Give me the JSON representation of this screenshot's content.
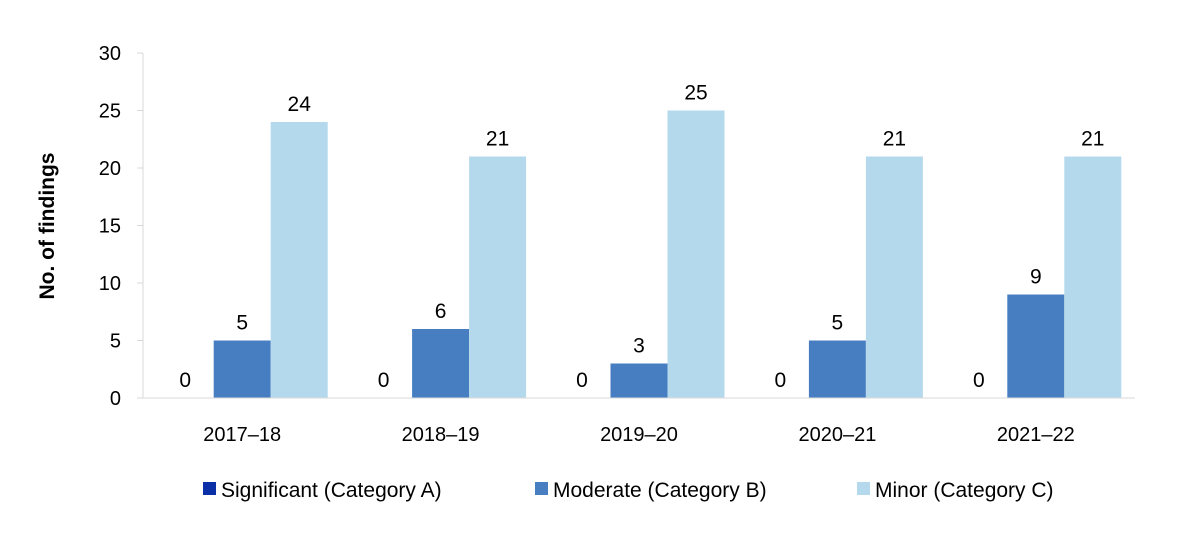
{
  "chart_data": {
    "type": "bar",
    "categories": [
      "2017–18",
      "2018–19",
      "2019–20",
      "2020–21",
      "2021–22"
    ],
    "series": [
      {
        "name": "Significant (Category A)",
        "values": [
          0,
          0,
          0,
          0,
          0
        ],
        "color": "#0b2fa6"
      },
      {
        "name": "Moderate (Category B)",
        "values": [
          5,
          6,
          3,
          5,
          9
        ],
        "color": "#477ec1"
      },
      {
        "name": "Minor (Category C)",
        "values": [
          24,
          21,
          25,
          21,
          21
        ],
        "color": "#b5d9ec"
      }
    ],
    "ylabel": "No. of findings",
    "xlabel": "",
    "ylim": [
      0,
      30
    ],
    "yticks": [
      0,
      5,
      10,
      15,
      20,
      25,
      30
    ],
    "grid": false,
    "legend_position": "bottom"
  }
}
